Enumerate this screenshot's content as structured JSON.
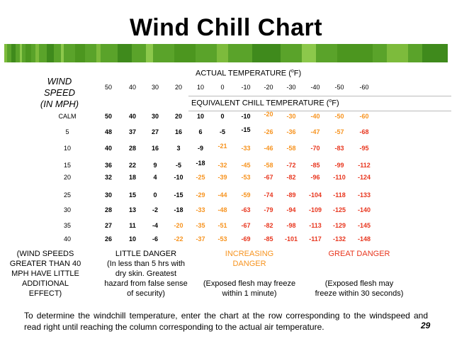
{
  "title": "Wind Chill Chart",
  "header": {
    "actual_prefix": "ACTUAL TEMPERATURE (",
    "degree_o": "o",
    "actual_suffix": "F)",
    "wind_label_line1": "WIND",
    "wind_label_line2": "SPEED",
    "wind_label_line3": "(IN MPH)",
    "equiv_prefix": "EQUIVALENT CHILL TEMPERATURE (",
    "equiv_suffix": "F)"
  },
  "actual_temps": [
    "50",
    "40",
    "30",
    "20",
    "10",
    "0",
    "-10",
    "-20",
    "-30",
    "-40",
    "-50",
    "-60"
  ],
  "rows": [
    {
      "speed": "CALM",
      "values": [
        "50",
        "40",
        "30",
        "20",
        "10",
        "0",
        "-10",
        "-20",
        "-30",
        "-40",
        "-50",
        "-60"
      ]
    },
    {
      "speed": "5",
      "values": [
        "48",
        "37",
        "27",
        "16",
        "6",
        "-5",
        "-15",
        "-26",
        "-36",
        "-47",
        "-57",
        "-68"
      ]
    },
    {
      "speed": "10",
      "values": [
        "40",
        "28",
        "16",
        "3",
        "-9",
        "-21",
        "-33",
        "-46",
        "-58",
        "-70",
        "-83",
        "-95"
      ]
    },
    {
      "speed": "15",
      "values": [
        "36",
        "22",
        "9",
        "-5",
        "-18",
        "-32",
        "-45",
        "-58",
        "-72",
        "-85",
        "-99",
        "-112"
      ]
    },
    {
      "speed": "20",
      "values": [
        "32",
        "18",
        "4",
        "-10",
        "-25",
        "-39",
        "-53",
        "-67",
        "-82",
        "-96",
        "-110",
        "-124"
      ]
    },
    {
      "speed": "25",
      "values": [
        "30",
        "15",
        "0",
        "-15",
        "-29",
        "-44",
        "-59",
        "-74",
        "-89",
        "-104",
        "-118",
        "-133"
      ]
    },
    {
      "speed": "30",
      "values": [
        "28",
        "13",
        "-2",
        "-18",
        "-33",
        "-48",
        "-63",
        "-79",
        "-94",
        "-109",
        "-125",
        "-140"
      ]
    },
    {
      "speed": "35",
      "values": [
        "27",
        "11",
        "-4",
        "-20",
        "-35",
        "-51",
        "-67",
        "-82",
        "-98",
        "-113",
        "-129",
        "-145"
      ]
    },
    {
      "speed": "40",
      "values": [
        "26",
        "10",
        "-6",
        "-22",
        "-37",
        "-53",
        "-69",
        "-85",
        "-101",
        "-117",
        "-132",
        "-148"
      ]
    }
  ],
  "danger_levels": {
    "little": [
      "LITTLE  DANGER",
      "(In less than 5 hrs with",
      "dry skin.  Greatest",
      "hazard from false sense",
      "of security)"
    ],
    "increasing": [
      "INCREASING",
      "DANGER",
      "",
      "(Exposed flesh may freeze",
      "within 1 minute)"
    ],
    "great": [
      "GREAT DANGER",
      "",
      "",
      "(Exposed flesh may",
      "freeze within 30 seconds)"
    ]
  },
  "wind_note": [
    "(WIND SPEEDS",
    "GREATER THAN 40",
    "MPH HAVE LITTLE",
    "ADDITIONAL",
    "EFFECT)"
  ],
  "instructions": "To determine the windchill temperature, enter the chart at the row corresponding to the windspeed and read right until reaching the column corresponding to the actual air temperature.",
  "page_number": "29",
  "colors": {
    "little_danger": "#000000",
    "increasing_danger": "#f7931e",
    "great_danger": "#e8361e",
    "stripe_green": "#5aa32a"
  }
}
